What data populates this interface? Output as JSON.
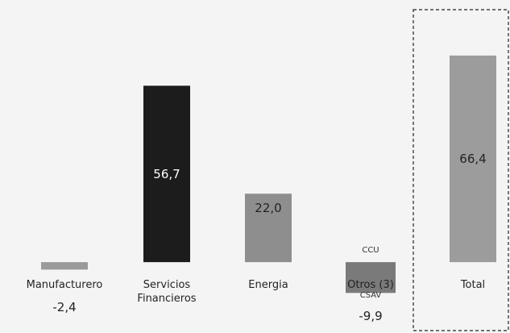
{
  "chart_data": {
    "type": "bar",
    "categories": [
      "Manufacturero",
      "Servicios Financieros",
      "Energia",
      "Otros (3)",
      "Total"
    ],
    "values": [
      -2.4,
      56.7,
      22.0,
      -9.9,
      66.4
    ],
    "value_labels": [
      "-2,4",
      "56,7",
      "22,0",
      "-9,9",
      "66,4"
    ],
    "colors": [
      "#9a9a9a",
      "#1c1c1c",
      "#8e8e8e",
      "#7a7a7a",
      "#9c9c9c"
    ],
    "ylim": [
      -15,
      70
    ],
    "annotations": [
      "CCU",
      "CSAV"
    ]
  }
}
